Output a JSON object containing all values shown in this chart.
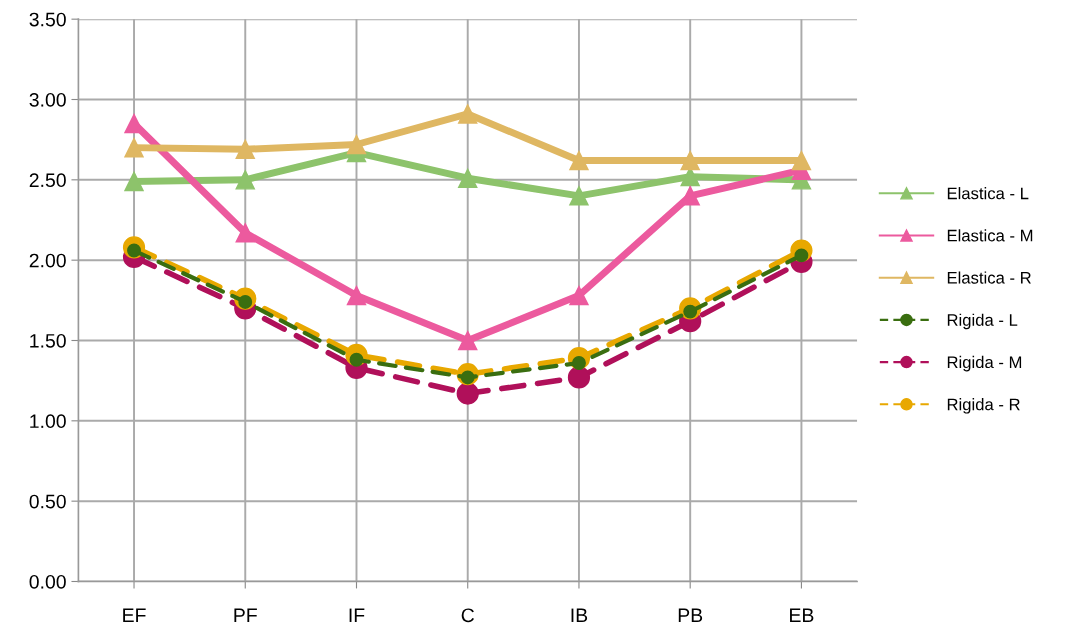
{
  "chart_data": {
    "type": "line",
    "categories": [
      "EF",
      "PF",
      "IF",
      "C",
      "IB",
      "PB",
      "EB"
    ],
    "ylim": [
      0,
      3.5
    ],
    "yticks": [
      {
        "value": 0,
        "label": "0.00"
      },
      {
        "value": 0.5,
        "label": "0.50"
      },
      {
        "value": 1,
        "label": "1.00"
      },
      {
        "value": 1.5,
        "label": "1.50"
      },
      {
        "value": 2,
        "label": "2.00"
      },
      {
        "value": 2.5,
        "label": "2.50"
      },
      {
        "value": 3,
        "label": "3.00"
      },
      {
        "value": 3.5,
        "label": "3.50"
      }
    ],
    "grid": true,
    "legend": "right",
    "series": [
      {
        "name": "Elastica - L",
        "color": "#8dc36b",
        "marker": "triangle",
        "line_style": "solid",
        "values": [
          2.49,
          2.5,
          2.67,
          2.51,
          2.4,
          2.52,
          2.5
        ]
      },
      {
        "name": "Elastica - M",
        "color": "#ec5a9e",
        "marker": "triangle",
        "line_style": "solid",
        "values": [
          2.85,
          2.17,
          1.78,
          1.5,
          1.78,
          2.4,
          2.56
        ]
      },
      {
        "name": "Elastica - R",
        "color": "#dfb762",
        "marker": "triangle",
        "line_style": "solid",
        "values": [
          2.7,
          2.69,
          2.72,
          2.91,
          2.62,
          2.62,
          2.62
        ]
      },
      {
        "name": "Rigida - L",
        "color": "#3a6e10",
        "marker": "circle",
        "line_style": "dashed",
        "values": [
          2.06,
          1.74,
          1.38,
          1.27,
          1.36,
          1.68,
          2.03
        ]
      },
      {
        "name": "Rigida - M",
        "color": "#b0105a",
        "marker": "circle",
        "line_style": "dashed",
        "values": [
          2.02,
          1.7,
          1.33,
          1.17,
          1.27,
          1.62,
          1.99
        ]
      },
      {
        "name": "Rigida - R",
        "color": "#e8a800",
        "marker": "circle",
        "line_style": "dashed",
        "values": [
          2.08,
          1.76,
          1.41,
          1.29,
          1.39,
          1.7,
          2.06
        ]
      }
    ]
  }
}
